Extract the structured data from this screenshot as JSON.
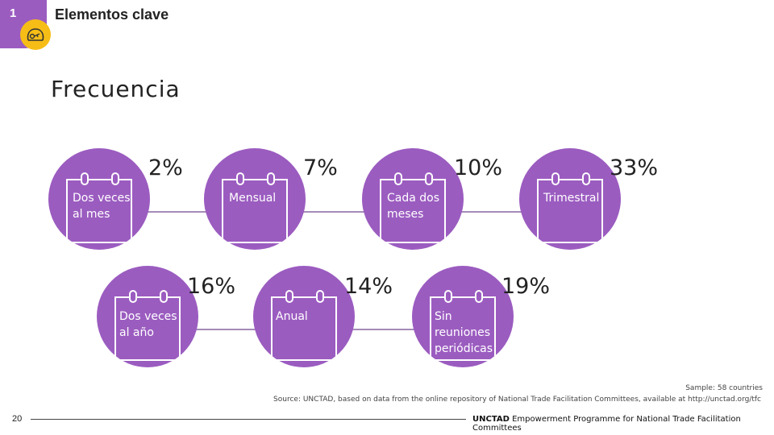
{
  "header": {
    "section_number": "1",
    "title": "Elementos clave",
    "badge_icon": "key-icon"
  },
  "main": {
    "title": "Frecuencia"
  },
  "row1": [
    {
      "label_line1": "Dos veces",
      "label_line2": "al mes",
      "percent": "2%"
    },
    {
      "label_line1": "Mensual",
      "label_line2": "",
      "percent": "7%"
    },
    {
      "label_line1": "Cada dos",
      "label_line2": "meses",
      "percent": "10%"
    },
    {
      "label_line1": "Trimestral",
      "label_line2": "",
      "percent": "33%"
    }
  ],
  "row2": [
    {
      "label_line1": "Dos veces",
      "label_line2": "al año",
      "label_line3": "",
      "percent": "16%"
    },
    {
      "label_line1": "Anual",
      "label_line2": "",
      "label_line3": "",
      "percent": "14%"
    },
    {
      "label_line1": "Sin",
      "label_line2": "reuniones",
      "label_line3": "periódicas",
      "percent": "19%"
    }
  ],
  "footnotes": {
    "sample": "Sample: 58 countries",
    "source": "Source: UNCTAD, based on data from the online repository of National Trade Facilitation Committees, available at http://unctad.org/tfc"
  },
  "footer": {
    "page_number": "20",
    "brand": "UNCTAD",
    "programme": "Empowerment Programme for National Trade Facilitation Committees"
  },
  "colors": {
    "accent": "#9b5cc0",
    "badge": "#f6bd16",
    "connector": "#a58bb8"
  }
}
